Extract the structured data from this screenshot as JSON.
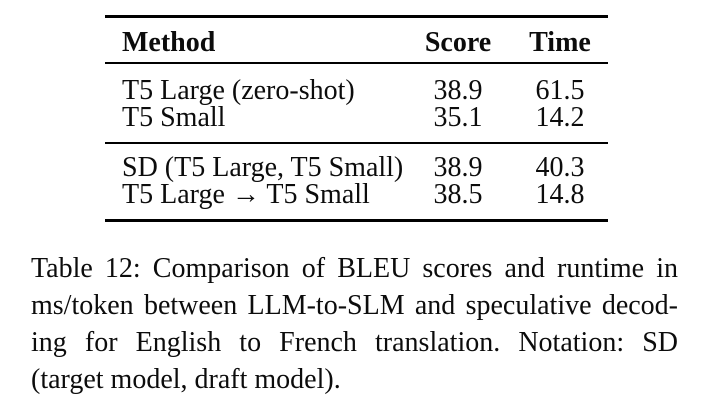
{
  "table": {
    "columns": [
      "Method",
      "Score",
      "Time"
    ],
    "groups": [
      {
        "rows": [
          {
            "method": "T5 Large (zero-shot)",
            "score": "38.9",
            "time": "61.5"
          },
          {
            "method": "T5 Small",
            "score": "35.1",
            "time": "14.2"
          }
        ]
      },
      {
        "rows": [
          {
            "method": "SD (T5 Large, T5 Small)",
            "score": "38.9",
            "time": "40.3"
          },
          {
            "method": "T5 Large → T5 Small",
            "score": "38.5",
            "time": "14.8"
          }
        ]
      }
    ]
  },
  "caption": {
    "label": "Table 12:",
    "lines": [
      "Table 12: Comparison of BLEU scores and runtime in",
      "ms/token between LLM-to-SLM and speculative decod-",
      "ing for English to French translation. Notation: SD",
      "(target model, draft model)."
    ],
    "full_text": "Table 12: Comparison of BLEU scores and runtime in ms/token between LLM-to-SLM and speculative decoding for English to French translation. Notation: SD (target model, draft model)."
  },
  "chart_data": {
    "type": "table",
    "title": "Table 12: Comparison of BLEU scores and runtime in ms/token between LLM-to-SLM and speculative decoding for English to French translation. Notation: SD (target model, draft model).",
    "columns": [
      "Method",
      "Score",
      "Time"
    ],
    "rows": [
      [
        "T5 Large (zero-shot)",
        38.9,
        61.5
      ],
      [
        "T5 Small",
        35.1,
        14.2
      ],
      [
        "SD (T5 Large, T5 Small)",
        38.9,
        40.3
      ],
      [
        "T5 Large → T5 Small",
        38.5,
        14.8
      ]
    ]
  },
  "colors": {
    "background": "#ffffff",
    "text": "#0c0c0c",
    "rule": "#000000"
  }
}
